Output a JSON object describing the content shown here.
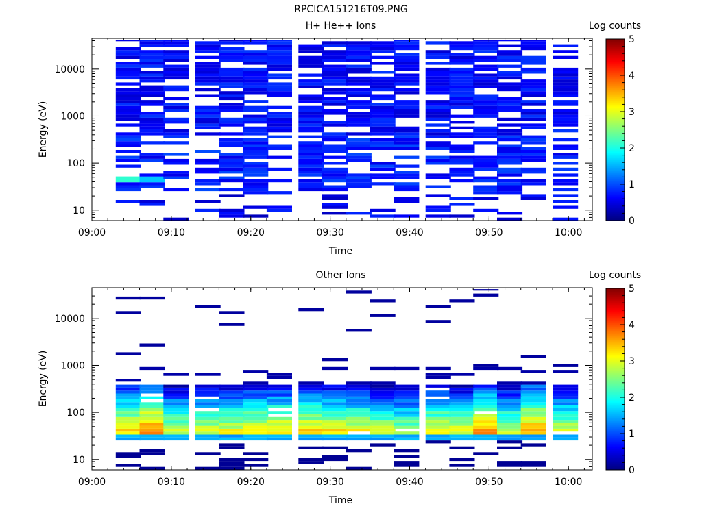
{
  "figure_title": "RPCICA151216T09.PNG",
  "chart_data": [
    {
      "type": "heatmap",
      "title": "H+ He++ Ions",
      "xlabel": "Time",
      "ylabel": "Energy (eV)",
      "y_scale": "log",
      "xlim": [
        "09:00",
        "10:03"
      ],
      "ylim": [
        6,
        45000
      ],
      "x_ticks": [
        "09:00",
        "09:10",
        "09:20",
        "09:30",
        "09:40",
        "09:50",
        "10:00"
      ],
      "y_ticks": [
        "10",
        "100",
        "1000",
        "10000"
      ],
      "colorbar": {
        "label": "Log counts",
        "range": [
          0,
          5
        ],
        "ticks": [
          "0",
          "1",
          "2",
          "3",
          "4",
          "5"
        ]
      },
      "columns": [
        "09:03",
        "09:06",
        "09:09",
        "09:13",
        "09:16",
        "09:19",
        "09:22",
        "09:26",
        "09:29",
        "09:32",
        "09:35",
        "09:38",
        "09:42",
        "09:45",
        "09:48",
        "09:51",
        "09:54",
        "09:58"
      ],
      "levels": {
        "high_energy": 0.4,
        "mid_energy": 0.5,
        "low_energy": 0.3,
        "peak_45eV_first_two_columns": [
          2.1,
          1.6
        ]
      }
    },
    {
      "type": "heatmap",
      "title": "Other Ions",
      "xlabel": "Time",
      "ylabel": "Energy (eV)",
      "y_scale": "log",
      "xlim": [
        "09:00",
        "10:03"
      ],
      "ylim": [
        6,
        45000
      ],
      "x_ticks": [
        "09:00",
        "09:10",
        "09:20",
        "09:30",
        "09:40",
        "09:50",
        "10:00"
      ],
      "y_ticks": [
        "10",
        "100",
        "1000",
        "10000"
      ],
      "colorbar": {
        "label": "Log counts",
        "range": [
          0,
          5
        ],
        "ticks": [
          "0",
          "1",
          "2",
          "3",
          "4",
          "5"
        ]
      },
      "columns": [
        "09:03",
        "09:06",
        "09:09",
        "09:13",
        "09:16",
        "09:19",
        "09:22",
        "09:26",
        "09:29",
        "09:32",
        "09:35",
        "09:38",
        "09:42",
        "09:45",
        "09:48",
        "09:51",
        "09:54",
        "09:58"
      ],
      "levels": {
        "peak_energy_eV": 40,
        "peak_log_counts": [
          3.4,
          3.8,
          3.0,
          3.0,
          3.1,
          3.3,
          3.3,
          3.3,
          3.2,
          3.1,
          2.9,
          2.8,
          3.2,
          3.0,
          3.6,
          3.0,
          3.7,
          3.0
        ],
        "band_edge_eV": 400
      }
    }
  ]
}
